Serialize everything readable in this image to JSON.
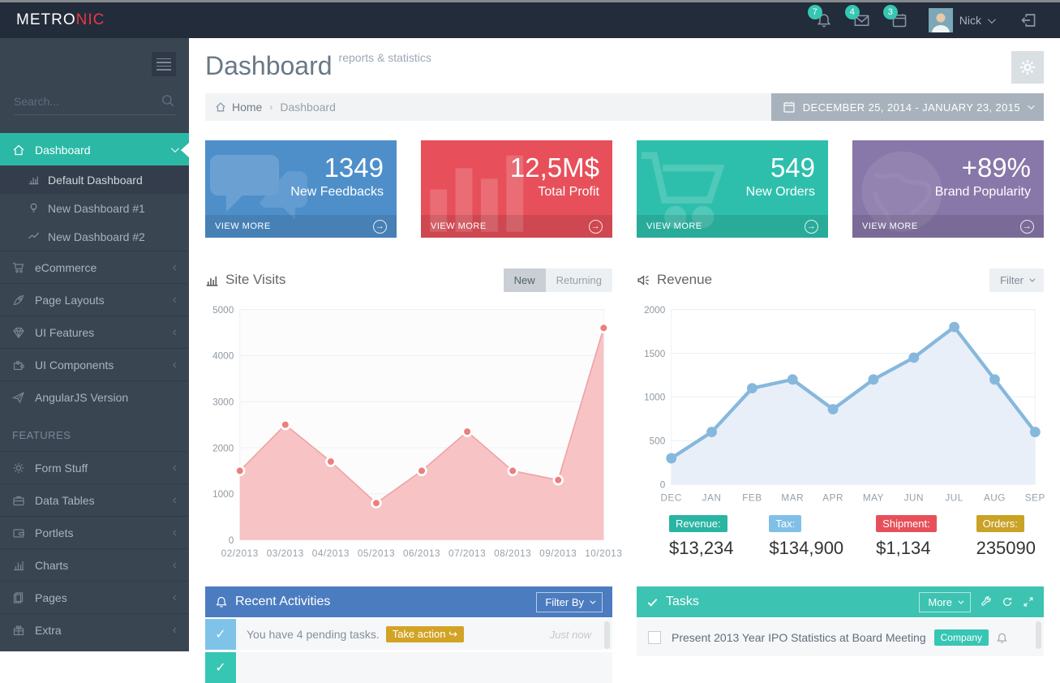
{
  "topbar": {
    "logo_primary": "METRO",
    "logo_accent": "NIC",
    "notifications_count": "7",
    "messages_count": "4",
    "todos_count": "3",
    "user_name": "Nick"
  },
  "sidebar": {
    "search_placeholder": "Search...",
    "section_heading": "FEATURES",
    "items": [
      {
        "label": "Dashboard"
      },
      {
        "label": "eCommerce"
      },
      {
        "label": "Page Layouts"
      },
      {
        "label": "UI Features"
      },
      {
        "label": "UI Components"
      },
      {
        "label": "AngularJS Version"
      },
      {
        "label": "Form Stuff"
      },
      {
        "label": "Data Tables"
      },
      {
        "label": "Portlets"
      },
      {
        "label": "Charts"
      },
      {
        "label": "Pages"
      },
      {
        "label": "Extra"
      }
    ],
    "sub_items": [
      {
        "label": "Default Dashboard"
      },
      {
        "label": "New Dashboard #1"
      },
      {
        "label": "New Dashboard #2"
      }
    ]
  },
  "page": {
    "title": "Dashboard",
    "subtitle": "reports & statistics",
    "breadcrumb_home": "Home",
    "breadcrumb_current": "Dashboard",
    "date_range": "DECEMBER 25, 2014 - JANUARY 23, 2015"
  },
  "stats_cards": [
    {
      "value": "1349",
      "label": "New Feedbacks",
      "action": "VIEW MORE",
      "color": "#4e8fca"
    },
    {
      "value": "12,5M$",
      "label": "Total Profit",
      "action": "VIEW MORE",
      "color": "#e7505a"
    },
    {
      "value": "549",
      "label": "New Orders",
      "action": "VIEW MORE",
      "color": "#2ebfac"
    },
    {
      "value": "+89%",
      "label": "Brand Popularity",
      "action": "VIEW MORE",
      "color": "#8877a9"
    }
  ],
  "site_visits": {
    "title": "Site Visits",
    "toggle_new": "New",
    "toggle_returning": "Returning"
  },
  "revenue": {
    "title": "Revenue",
    "filter_label": "Filter",
    "summary": [
      {
        "label": "Revenue:",
        "value": "$13,234",
        "color": "#2ab5a2"
      },
      {
        "label": "Tax:",
        "value": "$134,900",
        "color": "#81c0e6"
      },
      {
        "label": "Shipment:",
        "value": "$1,134",
        "color": "#e7505a"
      },
      {
        "label": "Orders:",
        "value": "235090",
        "color": "#c9a226"
      }
    ]
  },
  "chart_data": [
    {
      "type": "area",
      "title": "Site Visits",
      "x": [
        "02/2013",
        "03/2013",
        "04/2013",
        "05/2013",
        "06/2013",
        "07/2013",
        "08/2013",
        "09/2013",
        "10/2013"
      ],
      "values": [
        1500,
        2500,
        1700,
        800,
        1500,
        2350,
        1500,
        1300,
        4600
      ],
      "ylim": [
        0,
        5000
      ],
      "yticks": [
        0,
        1000,
        2000,
        3000,
        4000,
        5000
      ],
      "grid": true,
      "legend": "none",
      "plot_bg": "#fcfcfd",
      "fill": "#f8c3c5",
      "line_color": "#f0a2a4",
      "line_width": 1.5,
      "dot_color": "#ea807e",
      "dot_r": 5,
      "dot_stroke": "#ffffff",
      "dot_stroke_width": 2.5
    },
    {
      "type": "line",
      "title": "Revenue",
      "x": [
        "DEC",
        "JAN",
        "FEB",
        "MAR",
        "APR",
        "MAY",
        "JUN",
        "JUL",
        "AUG",
        "SEP"
      ],
      "values": [
        300,
        600,
        1100,
        1200,
        860,
        1200,
        1450,
        1800,
        1200,
        600
      ],
      "ylim": [
        0,
        2000
      ],
      "yticks": [
        0,
        500,
        1000,
        1500,
        2000
      ],
      "grid": true,
      "legend": "none",
      "plot_bg": "#ffffff",
      "fill": "#e9eff8",
      "line_color": "#86b8dd",
      "line_width": 4,
      "dot_color": "#86b8dd",
      "dot_r": 6,
      "dot_stroke": "none",
      "dot_stroke_width": 0
    }
  ],
  "activities": {
    "title": "Recent Activities",
    "filter_label": "Filter By",
    "rows": [
      {
        "text": "You have 4 pending tasks.",
        "badge": "Take action",
        "time": "Just now"
      }
    ]
  },
  "tasks": {
    "title": "Tasks",
    "more_label": "More",
    "rows": [
      {
        "text": "Present 2013 Year IPO Statistics at Board Meeting",
        "tag": "Company"
      }
    ]
  }
}
